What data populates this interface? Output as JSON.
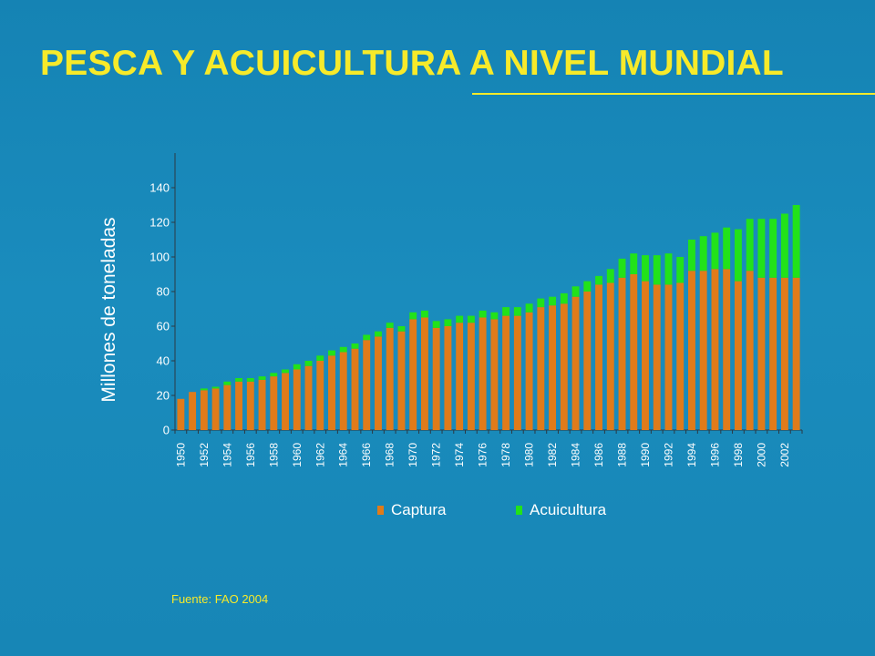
{
  "slide": {
    "title": "PESCA Y ACUICULTURA A NIVEL MUNDIAL",
    "source": "Fuente: FAO 2004"
  },
  "colors": {
    "background": "#1787b8",
    "title": "#f7ea2a",
    "captura": "#e07b1a",
    "acuicultura": "#22e21a",
    "text": "#ffffff"
  },
  "chart_data": {
    "type": "bar",
    "stacked": true,
    "title": "",
    "ylabel": "Millones de toneladas",
    "xlabel": "",
    "ylim": [
      0,
      160
    ],
    "yticks": [
      0,
      20,
      40,
      60,
      80,
      100,
      120,
      140
    ],
    "grid": false,
    "legend_position": "bottom",
    "x_tick_labels": [
      "1950",
      "1952",
      "1954",
      "1956",
      "1958",
      "1960",
      "1962",
      "1964",
      "1966",
      "1968",
      "1970",
      "1972",
      "1974",
      "1976",
      "1978",
      "1980",
      "1982",
      "1984",
      "1986",
      "1988",
      "1990",
      "1992",
      "1994",
      "1996",
      "1998",
      "2000",
      "2002"
    ],
    "categories": [
      "1950",
      "1951",
      "1952",
      "1953",
      "1954",
      "1955",
      "1956",
      "1957",
      "1958",
      "1959",
      "1960",
      "1961",
      "1962",
      "1963",
      "1964",
      "1965",
      "1966",
      "1967",
      "1968",
      "1969",
      "1970",
      "1971",
      "1972",
      "1973",
      "1974",
      "1975",
      "1976",
      "1977",
      "1978",
      "1979",
      "1980",
      "1981",
      "1982",
      "1983",
      "1984",
      "1985",
      "1986",
      "1987",
      "1988",
      "1989",
      "1990",
      "1991",
      "1992",
      "1993",
      "1994",
      "1995",
      "1996",
      "1997",
      "1998",
      "1999",
      "2000",
      "2001",
      "2002",
      "2003"
    ],
    "series": [
      {
        "name": "Captura",
        "values": [
          18,
          22,
          23,
          24,
          26,
          28,
          28,
          29,
          31,
          33,
          35,
          37,
          40,
          43,
          45,
          47,
          52,
          54,
          59,
          57,
          64,
          65,
          59,
          60,
          62,
          62,
          65,
          64,
          66,
          66,
          68,
          71,
          72,
          73,
          77,
          80,
          84,
          85,
          88,
          90,
          86,
          84,
          84,
          85,
          92,
          92,
          93,
          93,
          86,
          92,
          88,
          88,
          88,
          88
        ]
      },
      {
        "name": "Acuicultura",
        "values": [
          0,
          0,
          1,
          1,
          2,
          2,
          2,
          2,
          2,
          2,
          3,
          3,
          3,
          3,
          3,
          3,
          3,
          3,
          3,
          3,
          4,
          4,
          4,
          4,
          4,
          4,
          4,
          4,
          5,
          5,
          5,
          5,
          5,
          6,
          6,
          6,
          5,
          8,
          11,
          12,
          15,
          17,
          18,
          15,
          18,
          20,
          21,
          24,
          30,
          30,
          34,
          34,
          37,
          42
        ]
      }
    ]
  },
  "legend": {
    "items": [
      {
        "label": "Captura",
        "color": "#e07b1a"
      },
      {
        "label": "Acuicultura",
        "color": "#22e21a"
      }
    ]
  }
}
